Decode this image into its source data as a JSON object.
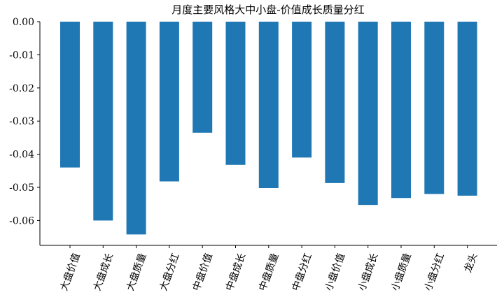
{
  "chart_data": {
    "type": "bar",
    "title": "月度主要风格大中小盘-价值成长质量分红",
    "xlabel": "",
    "ylabel": "",
    "categories": [
      "大盘价值",
      "大盘成长",
      "大盘质量",
      "大盘分红",
      "中盘价值",
      "中盘成长",
      "中盘质量",
      "中盘分红",
      "小盘价值",
      "小盘成长",
      "小盘质量",
      "小盘分红",
      "龙头"
    ],
    "values": [
      -0.044,
      -0.06,
      -0.0642,
      -0.0482,
      -0.0335,
      -0.0432,
      -0.0502,
      -0.041,
      -0.0487,
      -0.0553,
      -0.0532,
      -0.052,
      -0.0525
    ],
    "ylim": [
      -0.0675,
      0.0
    ],
    "yticks": [
      "0.00",
      "-0.01",
      "-0.02",
      "-0.03",
      "-0.04",
      "-0.05",
      "-0.06"
    ],
    "ytick_values": [
      0.0,
      -0.01,
      -0.02,
      -0.03,
      -0.04,
      -0.05,
      -0.06
    ],
    "bar_color": "#1f77b4",
    "grid": false,
    "legend": "none"
  }
}
